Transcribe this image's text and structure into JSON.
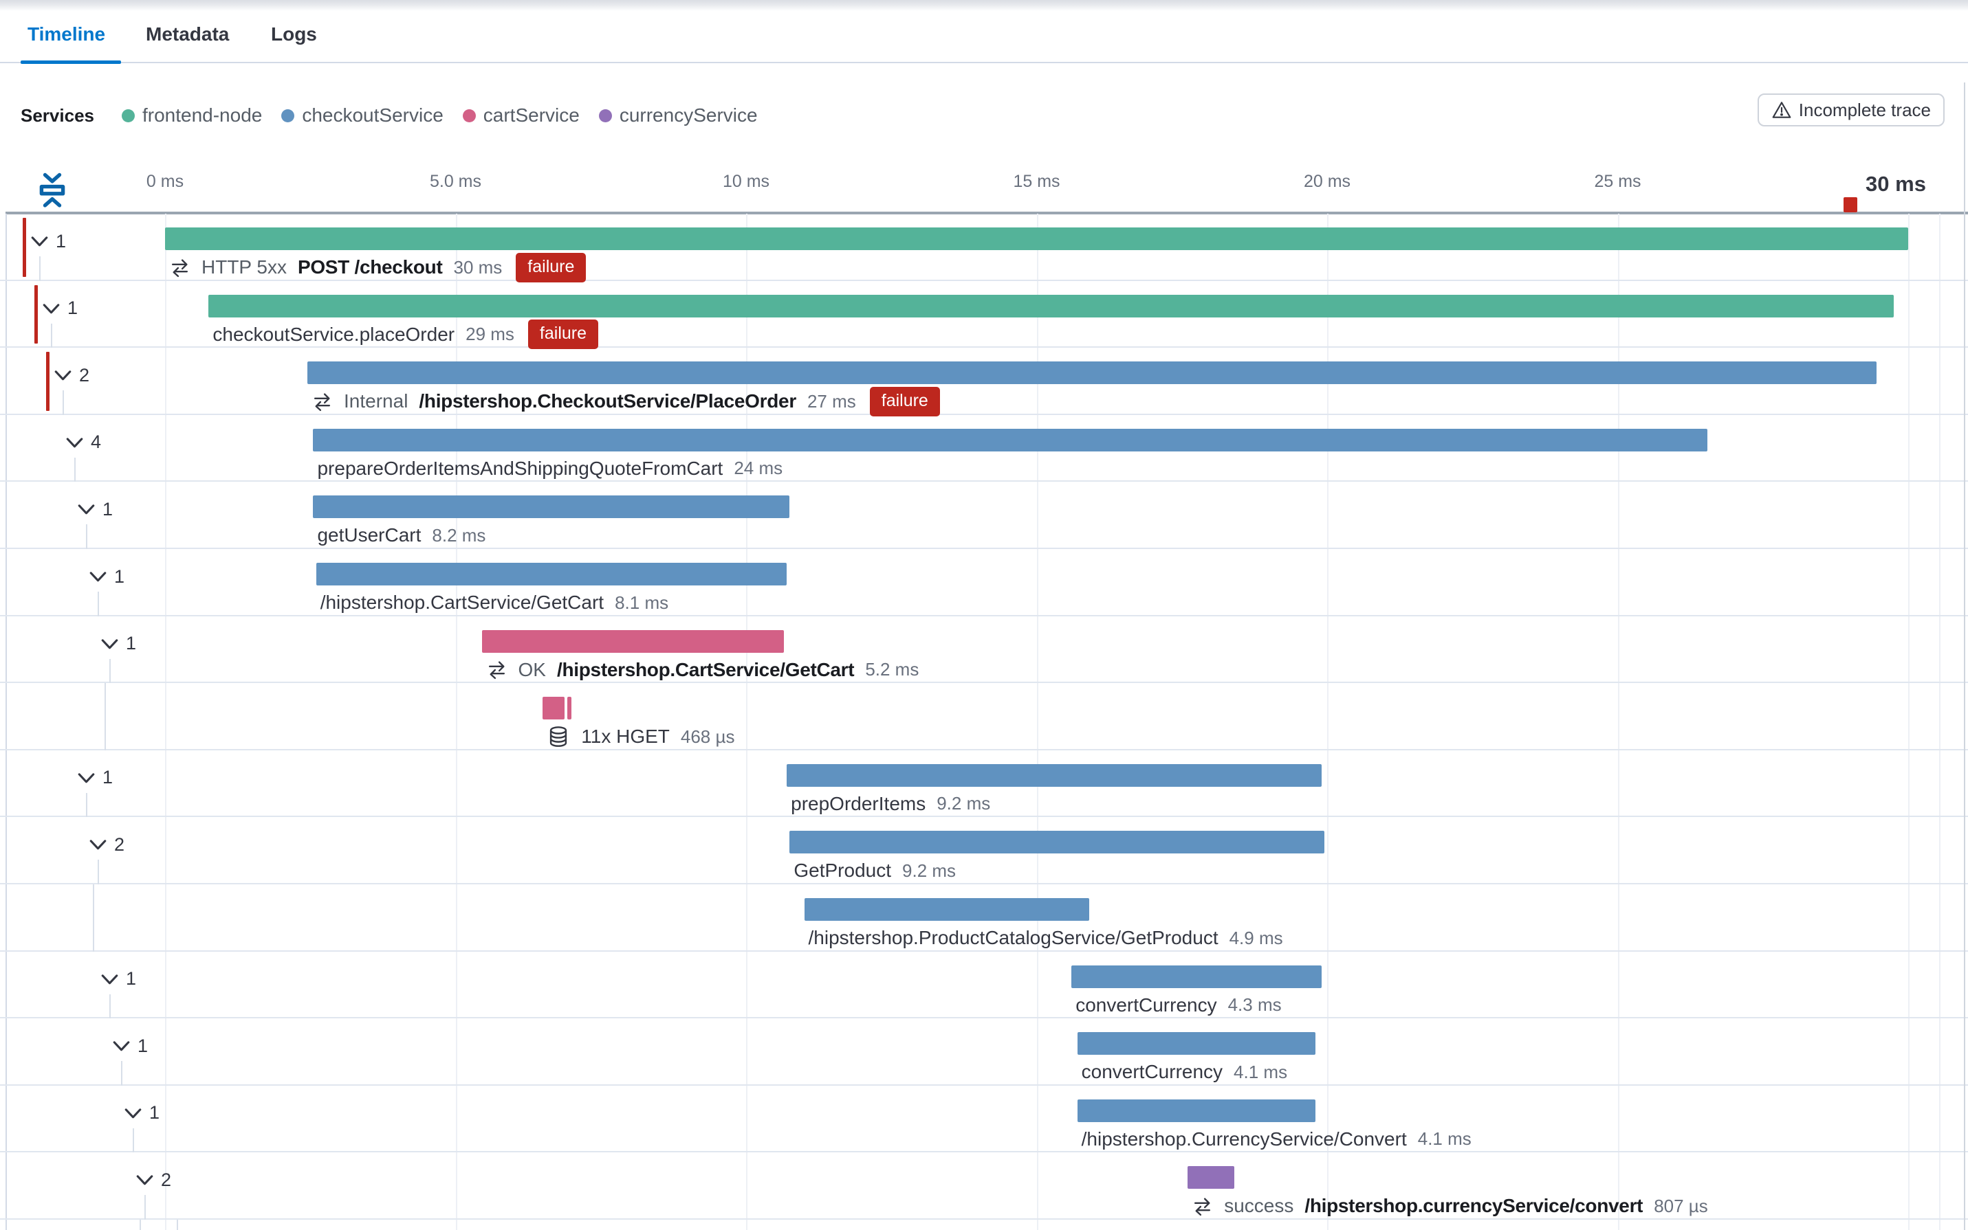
{
  "tabs": [
    {
      "label": "Timeline",
      "active": true
    },
    {
      "label": "Metadata",
      "active": false
    },
    {
      "label": "Logs",
      "active": false
    }
  ],
  "legend": {
    "title": "Services",
    "items": [
      {
        "name": "frontend-node",
        "color": "#54b399"
      },
      {
        "name": "checkoutService",
        "color": "#6092c0"
      },
      {
        "name": "cartService",
        "color": "#d36086"
      },
      {
        "name": "currencyService",
        "color": "#9170b8"
      }
    ]
  },
  "warning_button": {
    "label": "Incomplete trace",
    "icon": "warning-triangle-icon"
  },
  "colors": {
    "failure_badge": "#bd271e",
    "error_indicator": "#bd271e",
    "trace_end_marker": "#c4281e",
    "active_tab": "#0077cc",
    "collapse_icon": "#0b64a8"
  },
  "chart_data": {
    "type": "trace-waterfall-timeline",
    "unit": "ms",
    "axis": {
      "range_ms": [
        0,
        30
      ],
      "ticks": [
        {
          "label": "0 ms",
          "ms": 0
        },
        {
          "label": "5.0 ms",
          "ms": 5
        },
        {
          "label": "10 ms",
          "ms": 10
        },
        {
          "label": "15 ms",
          "ms": 15
        },
        {
          "label": "20 ms",
          "ms": 20
        },
        {
          "label": "25 ms",
          "ms": 25
        },
        {
          "label": "30 ms",
          "ms": 30,
          "emphasis": true
        }
      ],
      "error_marker_ms": 29
    },
    "spans": [
      {
        "depth": 0,
        "children_count": "1",
        "error": true,
        "service": "frontend-node",
        "start_ms": 0,
        "duration_ms": 30,
        "icon": "transaction-icon",
        "prefix": "HTTP 5xx",
        "title": "POST /checkout",
        "title_bold": true,
        "duration_label": "30 ms",
        "badge": "failure"
      },
      {
        "depth": 1,
        "children_count": "1",
        "error": true,
        "service": "frontend-node",
        "start_ms": 0.75,
        "duration_ms": 29,
        "icon": null,
        "prefix": null,
        "title": "checkoutService.placeOrder",
        "title_bold": false,
        "duration_label": "29 ms",
        "badge": "failure"
      },
      {
        "depth": 2,
        "children_count": "2",
        "error": true,
        "service": "checkoutService",
        "start_ms": 2.45,
        "duration_ms": 27,
        "icon": "transaction-icon",
        "prefix": "Internal",
        "title": "/hipstershop.CheckoutService/PlaceOrder",
        "title_bold": true,
        "duration_label": "27 ms",
        "badge": "failure"
      },
      {
        "depth": 3,
        "children_count": "4",
        "error": false,
        "service": "checkoutService",
        "start_ms": 2.55,
        "duration_ms": 24,
        "icon": null,
        "prefix": null,
        "title": "prepareOrderItemsAndShippingQuoteFromCart",
        "title_bold": false,
        "duration_label": "24 ms",
        "badge": null
      },
      {
        "depth": 4,
        "children_count": "1",
        "error": false,
        "service": "checkoutService",
        "start_ms": 2.55,
        "duration_ms": 8.2,
        "icon": null,
        "prefix": null,
        "title": "getUserCart",
        "title_bold": false,
        "duration_label": "8.2 ms",
        "badge": null
      },
      {
        "depth": 5,
        "children_count": "1",
        "error": false,
        "service": "checkoutService",
        "start_ms": 2.6,
        "duration_ms": 8.1,
        "icon": null,
        "prefix": null,
        "title": "/hipstershop.CartService/GetCart",
        "title_bold": false,
        "duration_label": "8.1 ms",
        "badge": null
      },
      {
        "depth": 6,
        "children_count": "1",
        "error": false,
        "service": "cartService",
        "start_ms": 5.45,
        "duration_ms": 5.2,
        "icon": "transaction-icon",
        "prefix": "OK",
        "title": "/hipstershop.CartService/GetCart",
        "title_bold": true,
        "duration_label": "5.2 ms",
        "badge": null
      },
      {
        "depth": 7,
        "children_count": null,
        "error": false,
        "service": "cartService",
        "start_ms": 6.5,
        "duration_ms": 0.38,
        "bars": [
          {
            "start_ms": 6.5,
            "duration_ms": 0.38
          },
          {
            "start_ms": 6.92,
            "duration_ms": 0.08
          }
        ],
        "icon": "database-icon",
        "prefix": null,
        "title": "11x HGET",
        "title_bold": false,
        "duration_label": "468 µs",
        "badge": null
      },
      {
        "depth": 4,
        "children_count": "1",
        "error": false,
        "service": "checkoutService",
        "start_ms": 10.7,
        "duration_ms": 9.2,
        "icon": null,
        "prefix": null,
        "title": "prepOrderItems",
        "title_bold": false,
        "duration_label": "9.2 ms",
        "badge": null
      },
      {
        "depth": 5,
        "children_count": "2",
        "error": false,
        "service": "checkoutService",
        "start_ms": 10.75,
        "duration_ms": 9.2,
        "icon": null,
        "prefix": null,
        "title": "GetProduct",
        "title_bold": false,
        "duration_label": "9.2 ms",
        "badge": null
      },
      {
        "depth": 6,
        "children_count": null,
        "error": false,
        "service": "checkoutService",
        "start_ms": 11.0,
        "duration_ms": 4.9,
        "icon": null,
        "prefix": null,
        "title": "/hipstershop.ProductCatalogService/GetProduct",
        "title_bold": false,
        "duration_label": "4.9 ms",
        "badge": null
      },
      {
        "depth": 6,
        "children_count": "1",
        "error": false,
        "service": "checkoutService",
        "start_ms": 15.6,
        "duration_ms": 4.3,
        "icon": null,
        "prefix": null,
        "title": "convertCurrency",
        "title_bold": false,
        "duration_label": "4.3 ms",
        "badge": null
      },
      {
        "depth": 7,
        "children_count": "1",
        "error": false,
        "service": "checkoutService",
        "start_ms": 15.7,
        "duration_ms": 4.1,
        "icon": null,
        "prefix": null,
        "title": "convertCurrency",
        "title_bold": false,
        "duration_label": "4.1 ms",
        "badge": null
      },
      {
        "depth": 8,
        "children_count": "1",
        "error": false,
        "service": "checkoutService",
        "start_ms": 15.7,
        "duration_ms": 4.1,
        "icon": null,
        "prefix": null,
        "title": "/hipstershop.CurrencyService/Convert",
        "title_bold": false,
        "duration_label": "4.1 ms",
        "badge": null
      },
      {
        "depth": 9,
        "children_count": "2",
        "error": false,
        "service": "currencyService",
        "start_ms": 17.6,
        "duration_ms": 0.807,
        "icon": "transaction-icon",
        "prefix": "success",
        "title": "/hipstershop.currencyService/convert",
        "title_bold": true,
        "duration_label": "807 µs",
        "badge": null
      }
    ]
  }
}
